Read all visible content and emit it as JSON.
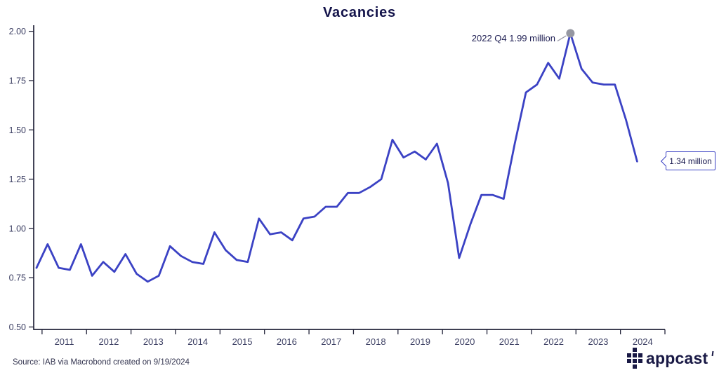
{
  "chart_data": {
    "type": "line",
    "title": "Vacancies",
    "xlabel": "",
    "ylabel": "",
    "ylim": [
      0.5,
      2.0
    ],
    "xlim": [
      2010.8125,
      2025.0
    ],
    "grid": false,
    "legend": "none",
    "y_ticks": [
      0.5,
      0.75,
      1.0,
      1.25,
      1.5,
      1.75,
      2.0
    ],
    "x_tick_years": [
      2011,
      2025
    ],
    "x_year_labels": [
      2011,
      2012,
      2013,
      2014,
      2015,
      2016,
      2017,
      2018,
      2019,
      2020,
      2021,
      2022,
      2023,
      2024
    ],
    "line_color": "#3b42c4",
    "marker_color": "#9597a1",
    "leader_color": "#9b9ba8",
    "axis_color": "#23243a",
    "label_color": "#3c3f63",
    "quarters": [
      "2010 Q4",
      "2011 Q1",
      "2011 Q2",
      "2011 Q3",
      "2011 Q4",
      "2012 Q1",
      "2012 Q2",
      "2012 Q3",
      "2012 Q4",
      "2013 Q1",
      "2013 Q2",
      "2013 Q3",
      "2013 Q4",
      "2014 Q1",
      "2014 Q2",
      "2014 Q3",
      "2014 Q4",
      "2015 Q1",
      "2015 Q2",
      "2015 Q3",
      "2015 Q4",
      "2016 Q1",
      "2016 Q2",
      "2016 Q3",
      "2016 Q4",
      "2017 Q1",
      "2017 Q2",
      "2017 Q3",
      "2017 Q4",
      "2018 Q1",
      "2018 Q2",
      "2018 Q3",
      "2018 Q4",
      "2019 Q1",
      "2019 Q2",
      "2019 Q3",
      "2019 Q4",
      "2020 Q1",
      "2020 Q2",
      "2020 Q3",
      "2020 Q4",
      "2021 Q1",
      "2021 Q2",
      "2021 Q3",
      "2021 Q4",
      "2022 Q1",
      "2022 Q2",
      "2022 Q3",
      "2022 Q4",
      "2023 Q1",
      "2023 Q2",
      "2023 Q3",
      "2023 Q4",
      "2024 Q1",
      "2024 Q2"
    ],
    "series": [
      {
        "name": "Vacancies (million)",
        "start_year": 2010,
        "start_quarter": 4,
        "values": [
          0.8,
          0.92,
          0.8,
          0.79,
          0.92,
          0.76,
          0.83,
          0.78,
          0.87,
          0.77,
          0.73,
          0.76,
          0.91,
          0.86,
          0.83,
          0.82,
          0.98,
          0.89,
          0.84,
          0.83,
          1.05,
          0.97,
          0.98,
          0.94,
          1.05,
          1.06,
          1.11,
          1.11,
          1.18,
          1.18,
          1.21,
          1.25,
          1.45,
          1.36,
          1.39,
          1.35,
          1.43,
          1.23,
          0.85,
          1.02,
          1.17,
          1.17,
          1.15,
          1.43,
          1.69,
          1.73,
          1.84,
          1.76,
          1.99,
          1.81,
          1.74,
          1.73,
          1.73,
          1.55,
          1.34
        ]
      }
    ]
  },
  "annotations": {
    "peak_label": "2022 Q4 1.99 million",
    "latest_label": "1.34 million"
  },
  "footer": {
    "source": "Source: IAB via Macrobond created on 9/19/2024",
    "logo_text": "appcast"
  }
}
